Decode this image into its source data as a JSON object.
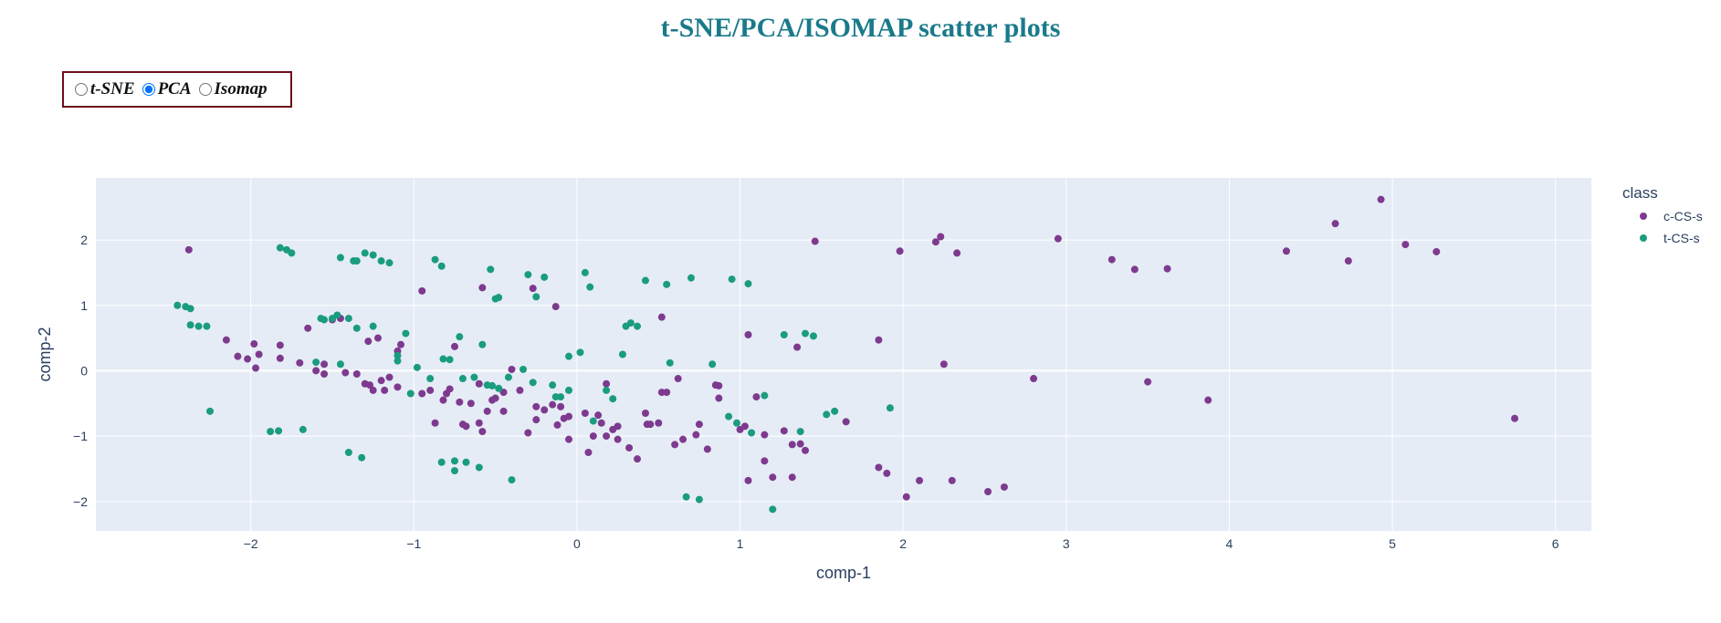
{
  "page": {
    "title": "t-SNE/PCA/ISOMAP scatter plots"
  },
  "method_selector": {
    "options": [
      {
        "label": "t-SNE",
        "value": "tsne",
        "checked": false
      },
      {
        "label": "PCA",
        "value": "pca",
        "checked": true
      },
      {
        "label": "Isomap",
        "value": "isomap",
        "checked": false
      }
    ]
  },
  "chart_data": {
    "type": "scatter",
    "title": "",
    "xlabel": "comp-1",
    "ylabel": "comp-2",
    "xlim": [
      -2.95,
      6.22
    ],
    "ylim": [
      -2.45,
      2.95
    ],
    "xticks": [
      -2,
      -1,
      0,
      1,
      2,
      3,
      4,
      5,
      6
    ],
    "yticks": [
      -2,
      -1,
      0,
      1,
      2
    ],
    "xtick_labels": [
      "−2",
      "−1",
      "0",
      "1",
      "2",
      "3",
      "4",
      "5",
      "6"
    ],
    "ytick_labels": [
      "−2",
      "−1",
      "0",
      "1",
      "2"
    ],
    "grid": true,
    "background": "#e5ecf6",
    "legend": {
      "title": "class",
      "position": "right"
    },
    "series": [
      {
        "name": "c-CS-s",
        "color": "#7e3a8e",
        "points": [
          [
            -2.38,
            1.85
          ],
          [
            -2.15,
            0.47
          ],
          [
            -2.08,
            0.22
          ],
          [
            -2.02,
            0.18
          ],
          [
            -1.98,
            0.41
          ],
          [
            -1.97,
            0.04
          ],
          [
            -1.95,
            0.25
          ],
          [
            -1.82,
            0.39
          ],
          [
            -1.82,
            0.19
          ],
          [
            -1.7,
            0.12
          ],
          [
            -1.65,
            0.65
          ],
          [
            -1.6,
            0.0
          ],
          [
            -1.55,
            0.1
          ],
          [
            -1.55,
            -0.05
          ],
          [
            -1.5,
            0.78
          ],
          [
            -1.45,
            0.8
          ],
          [
            -1.42,
            -0.03
          ],
          [
            -1.35,
            -0.05
          ],
          [
            -1.3,
            -0.2
          ],
          [
            -1.28,
            0.45
          ],
          [
            -1.27,
            -0.22
          ],
          [
            -1.25,
            -0.3
          ],
          [
            -1.22,
            0.5
          ],
          [
            -1.2,
            -0.15
          ],
          [
            -1.18,
            -0.3
          ],
          [
            -1.15,
            -0.1
          ],
          [
            -1.1,
            -0.25
          ],
          [
            -1.1,
            0.3
          ],
          [
            -1.08,
            0.4
          ],
          [
            -0.95,
            1.22
          ],
          [
            -0.95,
            -0.35
          ],
          [
            -0.9,
            -0.3
          ],
          [
            -0.87,
            -0.8
          ],
          [
            -0.82,
            -0.45
          ],
          [
            -0.8,
            -0.35
          ],
          [
            -0.78,
            -0.28
          ],
          [
            -0.75,
            0.37
          ],
          [
            -0.72,
            -0.48
          ],
          [
            -0.7,
            -0.82
          ],
          [
            -0.68,
            -0.85
          ],
          [
            -0.65,
            -0.5
          ],
          [
            -0.6,
            -0.2
          ],
          [
            -0.6,
            -0.8
          ],
          [
            -0.58,
            -0.93
          ],
          [
            -0.58,
            1.27
          ],
          [
            -0.55,
            -0.62
          ],
          [
            -0.52,
            -0.45
          ],
          [
            -0.5,
            -0.42
          ],
          [
            -0.45,
            -0.62
          ],
          [
            -0.45,
            -0.33
          ],
          [
            -0.4,
            0.02
          ],
          [
            -0.35,
            -0.3
          ],
          [
            -0.3,
            -0.95
          ],
          [
            -0.27,
            1.26
          ],
          [
            -0.25,
            -0.55
          ],
          [
            -0.25,
            -0.75
          ],
          [
            -0.2,
            -0.6
          ],
          [
            -0.15,
            -0.52
          ],
          [
            -0.13,
            0.98
          ],
          [
            -0.12,
            -0.83
          ],
          [
            -0.1,
            -0.55
          ],
          [
            -0.08,
            -0.73
          ],
          [
            -0.05,
            -1.05
          ],
          [
            -0.05,
            -0.7
          ],
          [
            0.05,
            -0.65
          ],
          [
            0.07,
            -1.25
          ],
          [
            0.1,
            -1.0
          ],
          [
            0.13,
            -0.68
          ],
          [
            0.15,
            -0.8
          ],
          [
            0.18,
            -1.0
          ],
          [
            0.18,
            -0.2
          ],
          [
            0.22,
            -0.9
          ],
          [
            0.25,
            -1.05
          ],
          [
            0.25,
            -0.85
          ],
          [
            0.32,
            -1.18
          ],
          [
            0.37,
            -1.35
          ],
          [
            0.42,
            -0.65
          ],
          [
            0.43,
            -0.82
          ],
          [
            0.45,
            -0.82
          ],
          [
            0.5,
            -0.8
          ],
          [
            0.52,
            -0.33
          ],
          [
            0.52,
            0.82
          ],
          [
            0.55,
            -0.33
          ],
          [
            0.6,
            -1.13
          ],
          [
            0.62,
            -0.12
          ],
          [
            0.65,
            -1.05
          ],
          [
            0.73,
            -0.98
          ],
          [
            0.75,
            -0.82
          ],
          [
            0.8,
            -1.2
          ],
          [
            0.85,
            -0.22
          ],
          [
            0.87,
            -0.42
          ],
          [
            0.87,
            -0.23
          ],
          [
            1.0,
            -0.9
          ],
          [
            1.03,
            -0.85
          ],
          [
            1.05,
            -1.68
          ],
          [
            1.05,
            0.55
          ],
          [
            1.1,
            -0.4
          ],
          [
            1.15,
            -0.98
          ],
          [
            1.15,
            -1.38
          ],
          [
            1.2,
            -1.63
          ],
          [
            1.27,
            -0.92
          ],
          [
            1.32,
            -1.63
          ],
          [
            1.32,
            -1.13
          ],
          [
            1.35,
            0.36
          ],
          [
            1.37,
            -1.12
          ],
          [
            1.4,
            -1.22
          ],
          [
            1.46,
            1.98
          ],
          [
            1.65,
            -0.78
          ],
          [
            1.85,
            -1.48
          ],
          [
            1.85,
            0.47
          ],
          [
            1.9,
            -1.57
          ],
          [
            1.98,
            1.83
          ],
          [
            2.02,
            -1.93
          ],
          [
            2.1,
            -1.68
          ],
          [
            2.2,
            1.97
          ],
          [
            2.23,
            2.05
          ],
          [
            2.25,
            0.1
          ],
          [
            2.3,
            -1.68
          ],
          [
            2.33,
            1.8
          ],
          [
            2.52,
            -1.85
          ],
          [
            2.62,
            -1.78
          ],
          [
            2.8,
            -0.12
          ],
          [
            2.95,
            2.02
          ],
          [
            3.28,
            1.7
          ],
          [
            3.42,
            1.55
          ],
          [
            3.5,
            -0.17
          ],
          [
            3.62,
            1.56
          ],
          [
            3.87,
            -0.45
          ],
          [
            4.35,
            1.83
          ],
          [
            4.65,
            2.25
          ],
          [
            4.73,
            1.68
          ],
          [
            4.93,
            2.62
          ],
          [
            5.08,
            1.93
          ],
          [
            5.27,
            1.82
          ],
          [
            5.75,
            -0.73
          ]
        ]
      },
      {
        "name": "t-CS-s",
        "color": "#1a9c7e",
        "points": [
          [
            -2.45,
            1.0
          ],
          [
            -2.4,
            0.98
          ],
          [
            -2.37,
            0.95
          ],
          [
            -2.37,
            0.7
          ],
          [
            -2.32,
            0.68
          ],
          [
            -2.27,
            0.68
          ],
          [
            -2.25,
            -0.62
          ],
          [
            -1.88,
            -0.93
          ],
          [
            -1.83,
            -0.92
          ],
          [
            -1.82,
            1.88
          ],
          [
            -1.78,
            1.85
          ],
          [
            -1.75,
            1.8
          ],
          [
            -1.68,
            -0.9
          ],
          [
            -1.6,
            0.13
          ],
          [
            -1.57,
            0.8
          ],
          [
            -1.55,
            0.78
          ],
          [
            -1.5,
            0.8
          ],
          [
            -1.47,
            0.85
          ],
          [
            -1.45,
            1.73
          ],
          [
            -1.45,
            0.1
          ],
          [
            -1.4,
            -1.25
          ],
          [
            -1.4,
            0.8
          ],
          [
            -1.37,
            1.68
          ],
          [
            -1.35,
            0.65
          ],
          [
            -1.35,
            1.68
          ],
          [
            -1.32,
            -1.33
          ],
          [
            -1.3,
            1.8
          ],
          [
            -1.25,
            0.68
          ],
          [
            -1.25,
            1.77
          ],
          [
            -1.2,
            1.68
          ],
          [
            -1.15,
            1.65
          ],
          [
            -1.1,
            0.23
          ],
          [
            -1.1,
            0.15
          ],
          [
            -1.05,
            0.57
          ],
          [
            -1.02,
            -0.35
          ],
          [
            -0.98,
            0.05
          ],
          [
            -0.9,
            -0.12
          ],
          [
            -0.87,
            1.7
          ],
          [
            -0.83,
            1.6
          ],
          [
            -0.83,
            -1.4
          ],
          [
            -0.82,
            0.18
          ],
          [
            -0.78,
            0.17
          ],
          [
            -0.75,
            -1.38
          ],
          [
            -0.75,
            -1.53
          ],
          [
            -0.72,
            0.52
          ],
          [
            -0.7,
            -0.12
          ],
          [
            -0.68,
            -1.4
          ],
          [
            -0.63,
            -0.1
          ],
          [
            -0.6,
            -1.48
          ],
          [
            -0.58,
            0.4
          ],
          [
            -0.55,
            -0.22
          ],
          [
            -0.53,
            1.55
          ],
          [
            -0.52,
            -0.23
          ],
          [
            -0.5,
            1.1
          ],
          [
            -0.48,
            1.12
          ],
          [
            -0.48,
            -0.27
          ],
          [
            -0.42,
            -0.1
          ],
          [
            -0.4,
            -1.67
          ],
          [
            -0.33,
            0.02
          ],
          [
            -0.3,
            1.47
          ],
          [
            -0.27,
            -0.18
          ],
          [
            -0.25,
            1.13
          ],
          [
            -0.2,
            1.43
          ],
          [
            -0.15,
            -0.22
          ],
          [
            -0.13,
            -0.4
          ],
          [
            -0.1,
            -0.4
          ],
          [
            -0.05,
            0.22
          ],
          [
            -0.05,
            -0.3
          ],
          [
            0.02,
            0.28
          ],
          [
            0.05,
            1.5
          ],
          [
            0.08,
            1.28
          ],
          [
            0.1,
            -0.77
          ],
          [
            0.18,
            -0.3
          ],
          [
            0.22,
            -0.43
          ],
          [
            0.28,
            0.25
          ],
          [
            0.3,
            0.68
          ],
          [
            0.33,
            0.73
          ],
          [
            0.37,
            0.68
          ],
          [
            0.42,
            1.38
          ],
          [
            0.55,
            1.32
          ],
          [
            0.57,
            0.12
          ],
          [
            0.67,
            -1.93
          ],
          [
            0.7,
            1.42
          ],
          [
            0.75,
            -1.97
          ],
          [
            0.83,
            0.1
          ],
          [
            0.93,
            -0.7
          ],
          [
            0.95,
            1.4
          ],
          [
            0.98,
            -0.8
          ],
          [
            1.05,
            1.33
          ],
          [
            1.07,
            -0.95
          ],
          [
            1.15,
            -0.38
          ],
          [
            1.2,
            -2.12
          ],
          [
            1.27,
            0.55
          ],
          [
            1.37,
            -0.93
          ],
          [
            1.4,
            0.57
          ],
          [
            1.45,
            0.53
          ],
          [
            1.53,
            -0.67
          ],
          [
            1.58,
            -0.62
          ],
          [
            1.92,
            -0.57
          ]
        ]
      }
    ]
  }
}
